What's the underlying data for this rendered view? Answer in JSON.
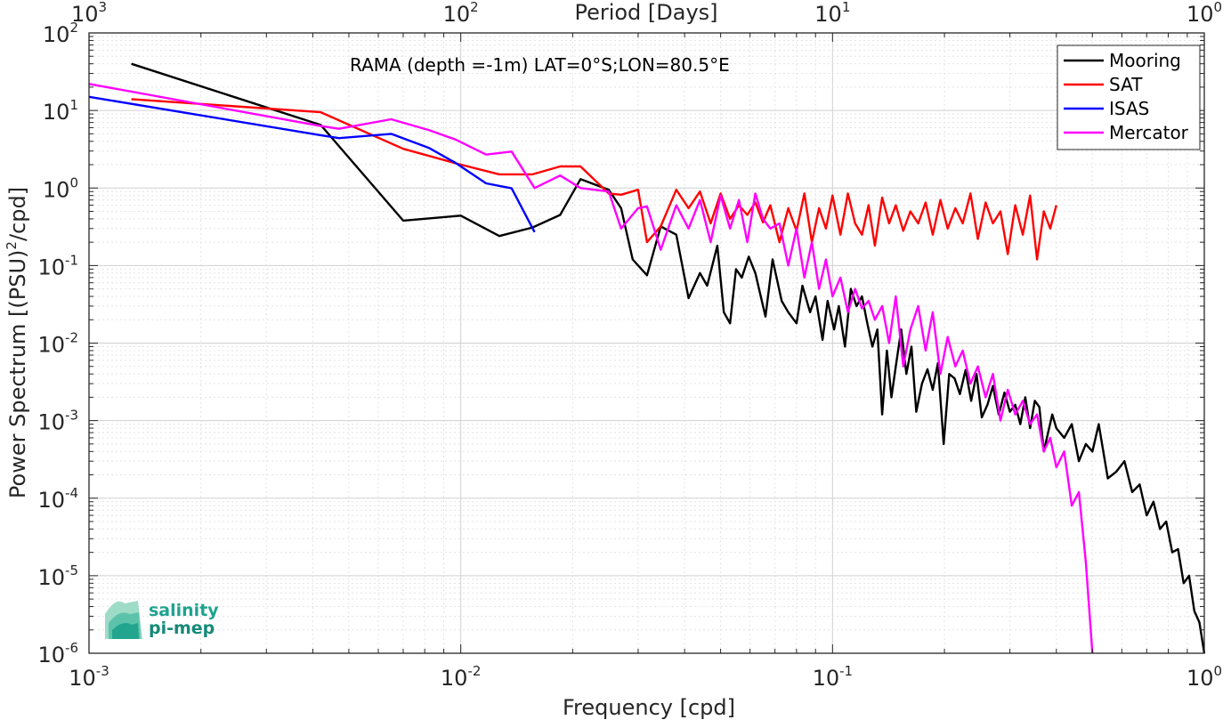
{
  "chart_data": {
    "type": "line",
    "annotation": "RAMA (depth =-1m) LAT=0°S;LON=80.5°E",
    "xlabel": "Frequency [cpd]",
    "ylabel": "Power Spectrum [(PSU)^2/cpd]",
    "top_xlabel": "Period [Days]",
    "xscale": "log",
    "yscale": "log",
    "xlim": [
      0.001,
      1
    ],
    "ylim": [
      1e-06,
      100
    ],
    "grid": true,
    "legend_position": "top-right",
    "x_ticks": [
      {
        "base": "10",
        "exp": "-3"
      },
      {
        "base": "10",
        "exp": "-2"
      },
      {
        "base": "10",
        "exp": "-1"
      },
      {
        "base": "10",
        "exp": "0"
      }
    ],
    "top_ticks": [
      {
        "base": "10",
        "exp": "3"
      },
      {
        "base": "10",
        "exp": "2"
      },
      {
        "base": "10",
        "exp": "1"
      },
      {
        "base": "10",
        "exp": "0"
      }
    ],
    "y_ticks": [
      {
        "base": "10",
        "exp": "-6"
      },
      {
        "base": "10",
        "exp": "-5"
      },
      {
        "base": "10",
        "exp": "-4"
      },
      {
        "base": "10",
        "exp": "-3"
      },
      {
        "base": "10",
        "exp": "-2"
      },
      {
        "base": "10",
        "exp": "-1"
      },
      {
        "base": "10",
        "exp": "0"
      },
      {
        "base": "10",
        "exp": "1"
      },
      {
        "base": "10",
        "exp": "2"
      }
    ],
    "series": [
      {
        "name": "Mooring",
        "color": "#000000",
        "x": [
          0.0013,
          0.0042,
          0.007,
          0.01,
          0.0127,
          0.0156,
          0.0185,
          0.021,
          0.025,
          0.027,
          0.029,
          0.0317,
          0.0345,
          0.038,
          0.041,
          0.044,
          0.046,
          0.049,
          0.051,
          0.053,
          0.055,
          0.057,
          0.0595,
          0.062,
          0.066,
          0.069,
          0.073,
          0.076,
          0.08,
          0.083,
          0.087,
          0.09,
          0.094,
          0.097,
          0.101,
          0.104,
          0.108,
          0.112,
          0.116,
          0.12,
          0.124,
          0.128,
          0.132,
          0.136,
          0.14,
          0.144,
          0.148,
          0.153,
          0.158,
          0.163,
          0.168,
          0.174,
          0.18,
          0.186,
          0.192,
          0.199,
          0.206,
          0.213,
          0.22,
          0.228,
          0.236,
          0.244,
          0.252,
          0.261,
          0.27,
          0.28,
          0.29,
          0.3,
          0.31,
          0.32,
          0.33,
          0.34,
          0.35,
          0.36,
          0.37,
          0.38,
          0.39,
          0.4,
          0.42,
          0.44,
          0.46,
          0.48,
          0.5,
          0.52,
          0.55,
          0.58,
          0.61,
          0.64,
          0.67,
          0.7,
          0.73,
          0.76,
          0.79,
          0.82,
          0.85,
          0.88,
          0.91,
          0.94,
          0.97,
          1.0
        ],
        "values": [
          40,
          6.5,
          0.38,
          0.44,
          0.24,
          0.31,
          0.45,
          1.3,
          0.95,
          0.55,
          0.12,
          0.075,
          0.32,
          0.25,
          0.038,
          0.08,
          0.055,
          0.18,
          0.025,
          0.018,
          0.09,
          0.07,
          0.13,
          0.08,
          0.022,
          0.12,
          0.035,
          0.025,
          0.018,
          0.055,
          0.025,
          0.04,
          0.011,
          0.035,
          0.015,
          0.03,
          0.009,
          0.05,
          0.03,
          0.04,
          0.018,
          0.009,
          0.015,
          0.0012,
          0.008,
          0.002,
          0.005,
          0.015,
          0.004,
          0.009,
          0.0013,
          0.003,
          0.0046,
          0.0025,
          0.0055,
          0.0005,
          0.004,
          0.0035,
          0.0022,
          0.0045,
          0.0018,
          0.004,
          0.0011,
          0.0016,
          0.0028,
          0.0012,
          0.0023,
          0.0013,
          0.0016,
          0.0009,
          0.002,
          0.0008,
          0.0018,
          0.0015,
          0.0004,
          0.0007,
          0.0012,
          0.0008,
          0.0006,
          0.0009,
          0.0003,
          0.0005,
          0.0004,
          0.0009,
          0.00018,
          0.00022,
          0.0003,
          0.00012,
          0.00015,
          6e-05,
          9e-05,
          4e-05,
          5e-05,
          2e-05,
          2.2e-05,
          8e-06,
          1e-05,
          3.5e-06,
          2.5e-06,
          1e-06
        ]
      },
      {
        "name": "SAT",
        "color": "#ff0000",
        "x": [
          0.0013,
          0.0042,
          0.007,
          0.01,
          0.0127,
          0.0156,
          0.0185,
          0.021,
          0.025,
          0.027,
          0.03,
          0.0317,
          0.0345,
          0.038,
          0.041,
          0.044,
          0.047,
          0.05,
          0.053,
          0.056,
          0.059,
          0.062,
          0.065,
          0.068,
          0.072,
          0.076,
          0.08,
          0.084,
          0.088,
          0.092,
          0.096,
          0.1,
          0.105,
          0.11,
          0.115,
          0.12,
          0.125,
          0.13,
          0.136,
          0.142,
          0.148,
          0.155,
          0.162,
          0.17,
          0.178,
          0.186,
          0.195,
          0.204,
          0.214,
          0.224,
          0.235,
          0.246,
          0.258,
          0.27,
          0.283,
          0.296,
          0.31,
          0.325,
          0.34,
          0.355,
          0.37,
          0.385,
          0.4
        ],
        "values": [
          14,
          9.5,
          3.2,
          2.0,
          1.5,
          1.5,
          1.9,
          1.9,
          0.85,
          0.82,
          0.95,
          0.2,
          0.32,
          0.95,
          0.55,
          0.9,
          0.35,
          0.85,
          0.4,
          0.6,
          0.45,
          0.65,
          0.36,
          0.6,
          0.2,
          0.55,
          0.28,
          0.85,
          0.2,
          0.55,
          0.3,
          0.8,
          0.25,
          0.85,
          0.35,
          0.25,
          0.6,
          0.18,
          0.75,
          0.35,
          0.6,
          0.28,
          0.5,
          0.35,
          0.65,
          0.25,
          0.7,
          0.3,
          0.55,
          0.35,
          0.85,
          0.22,
          0.65,
          0.35,
          0.5,
          0.14,
          0.6,
          0.25,
          0.8,
          0.12,
          0.5,
          0.3,
          0.6
        ]
      },
      {
        "name": "ISAS",
        "color": "#0000ff",
        "x": [
          0.001,
          0.0042,
          0.0047,
          0.0065,
          0.0082,
          0.0097,
          0.0117,
          0.0137,
          0.0158
        ],
        "values": [
          15,
          4.8,
          4.4,
          5.0,
          3.3,
          2.1,
          1.15,
          0.99,
          0.27
        ]
      },
      {
        "name": "Mercator",
        "color": "#ff00ff",
        "x": [
          0.001,
          0.0042,
          0.0047,
          0.0065,
          0.0082,
          0.0097,
          0.0117,
          0.0137,
          0.0158,
          0.0185,
          0.021,
          0.025,
          0.027,
          0.03,
          0.0317,
          0.0345,
          0.038,
          0.041,
          0.044,
          0.047,
          0.05,
          0.053,
          0.056,
          0.059,
          0.062,
          0.065,
          0.068,
          0.072,
          0.076,
          0.08,
          0.084,
          0.088,
          0.092,
          0.096,
          0.1,
          0.105,
          0.11,
          0.115,
          0.12,
          0.125,
          0.13,
          0.136,
          0.142,
          0.148,
          0.155,
          0.162,
          0.17,
          0.178,
          0.186,
          0.195,
          0.204,
          0.214,
          0.224,
          0.235,
          0.246,
          0.258,
          0.27,
          0.283,
          0.296,
          0.31,
          0.325,
          0.34,
          0.355,
          0.37,
          0.385,
          0.4,
          0.42,
          0.44,
          0.46,
          0.48,
          0.5
        ],
        "values": [
          22,
          6.3,
          5.8,
          7.7,
          5.6,
          4.2,
          2.7,
          2.95,
          1.0,
          1.45,
          1.0,
          0.9,
          0.3,
          0.55,
          0.58,
          0.16,
          0.6,
          0.3,
          0.7,
          0.2,
          0.8,
          0.3,
          0.7,
          0.2,
          0.85,
          0.4,
          0.3,
          0.35,
          0.1,
          0.3,
          0.07,
          0.2,
          0.05,
          0.12,
          0.04,
          0.07,
          0.025,
          0.05,
          0.028,
          0.035,
          0.02,
          0.03,
          0.01,
          0.04,
          0.005,
          0.015,
          0.03,
          0.008,
          0.025,
          0.004,
          0.012,
          0.005,
          0.008,
          0.003,
          0.005,
          0.002,
          0.004,
          0.001,
          0.0025,
          0.0012,
          0.0018,
          0.0009,
          0.0012,
          0.0004,
          0.0006,
          0.00025,
          0.0004,
          8e-05,
          0.00012,
          1.5e-05,
          1e-06
        ]
      }
    ]
  },
  "logo": {
    "line1": "salinity",
    "line2": "pi-mep"
  }
}
